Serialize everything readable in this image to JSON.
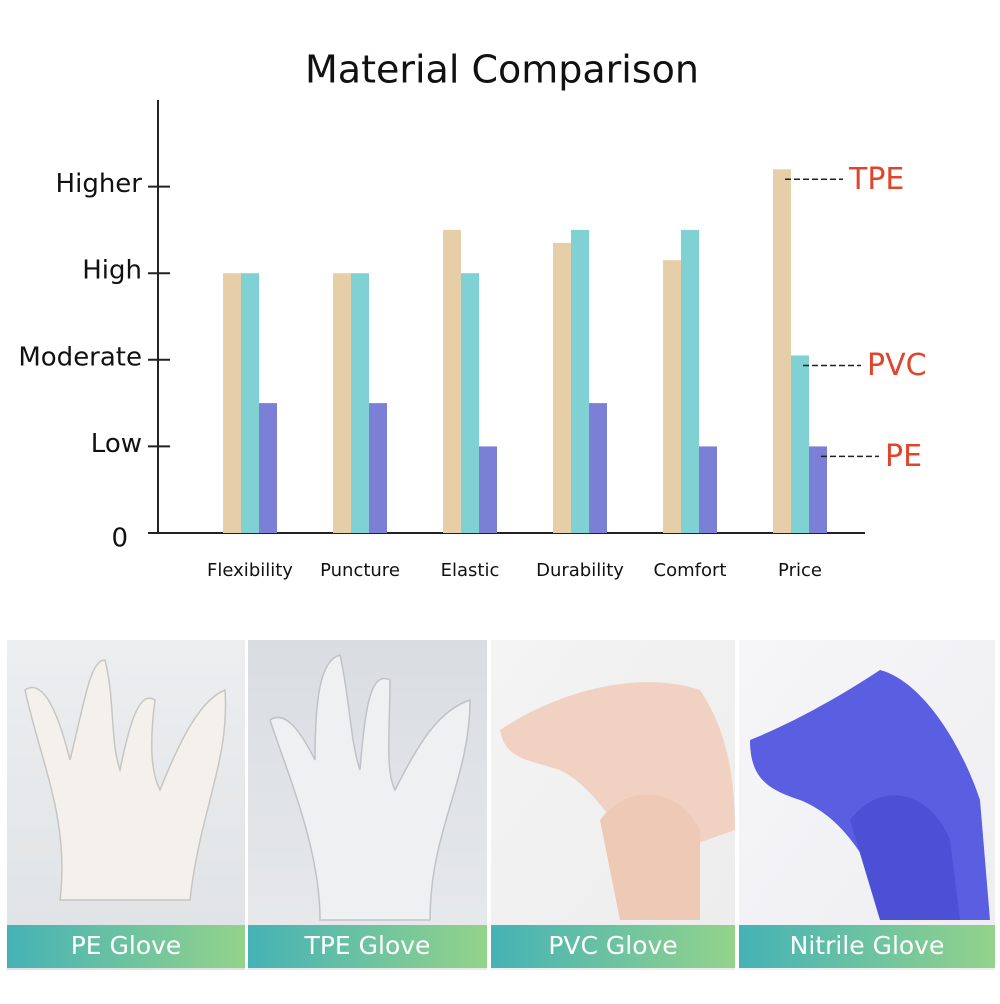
{
  "chart_data": {
    "type": "bar",
    "title": "Material Comparison",
    "categories": [
      "Flexibility",
      "Puncture",
      "Elastic",
      "Durability",
      "Comfort",
      "Price"
    ],
    "series": [
      {
        "name": "TPE",
        "color": "#e6cfa8",
        "values": [
          3,
          3,
          3.5,
          3.35,
          3.15,
          4.2
        ]
      },
      {
        "name": "PVC",
        "color": "#80d1d4",
        "values": [
          3,
          3,
          3,
          3.5,
          3.5,
          2.05
        ]
      },
      {
        "name": "PE",
        "color": "#7b80d6",
        "values": [
          1.5,
          1.5,
          1,
          1.5,
          1,
          1
        ]
      }
    ],
    "ylim": [
      0,
      5
    ],
    "yticks": [
      0,
      {
        "value": 1,
        "label": "Low"
      },
      {
        "value": 2,
        "label": "Moderate"
      },
      {
        "value": 3,
        "label": "High"
      },
      {
        "value": 4,
        "label": "Higher"
      }
    ],
    "legend_color": "#e0452a"
  },
  "photos": [
    {
      "caption": "PE Glove"
    },
    {
      "caption": "TPE Glove"
    },
    {
      "caption": "PVC Glove"
    },
    {
      "caption": "Nitrile Glove"
    }
  ]
}
